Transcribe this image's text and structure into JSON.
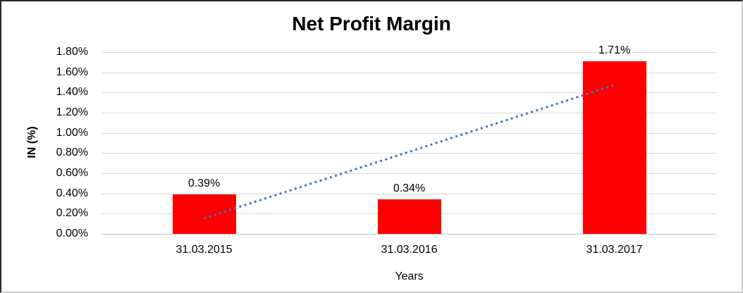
{
  "chart_data": {
    "type": "bar",
    "title": "Net Profit Margin",
    "categories": [
      "31.03.2015",
      "31.03.2016",
      "31.03.2017"
    ],
    "values": [
      0.39,
      0.34,
      1.71
    ],
    "data_labels": [
      "0.39%",
      "0.34%",
      "1.71%"
    ],
    "xlabel": "Years",
    "ylabel": "IN (%)",
    "ylim": [
      0,
      1.8
    ],
    "ytick_step": 0.2,
    "yticks": [
      "1.80%",
      "1.60%",
      "1.40%",
      "1.20%",
      "1.00%",
      "0.80%",
      "0.60%",
      "0.40%",
      "0.20%",
      "0.00%"
    ],
    "grid": true,
    "legend": "none",
    "colors": {
      "bar": "#ff0000",
      "trendline": "#4472c4",
      "gridline": "#d9d9d9",
      "axis_line": "#bfbfbf",
      "text": "#000000"
    },
    "trendline": {
      "kind": "linear",
      "style": "dotted",
      "start_value_pct": 0.15,
      "end_value_pct": 1.47
    }
  }
}
